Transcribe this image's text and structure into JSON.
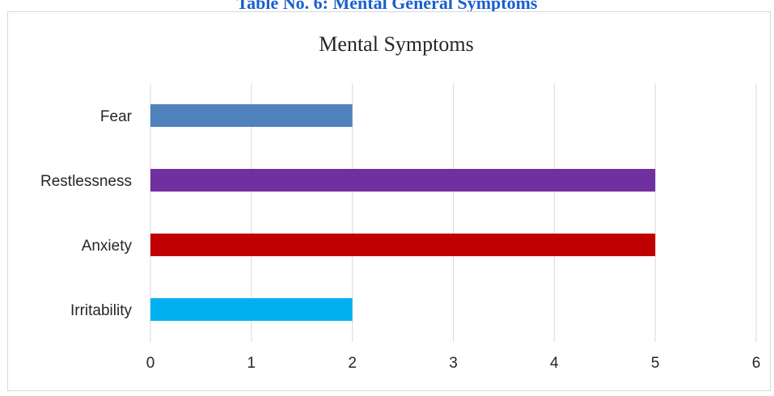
{
  "caption": "Table No. 6: Mental General Symptoms",
  "chart_data": {
    "type": "bar",
    "orientation": "horizontal",
    "title": "Mental Symptoms",
    "categories": [
      "Fear",
      "Restlessness",
      "Anxiety",
      "Irritability"
    ],
    "values": [
      2,
      5,
      5,
      2
    ],
    "colors": [
      "#4f81bd",
      "#7030a0",
      "#c00000",
      "#00b0f0"
    ],
    "xlim": [
      0,
      6
    ],
    "xticks": [
      "0",
      "1",
      "2",
      "3",
      "4",
      "5",
      "6"
    ],
    "grid": true
  }
}
